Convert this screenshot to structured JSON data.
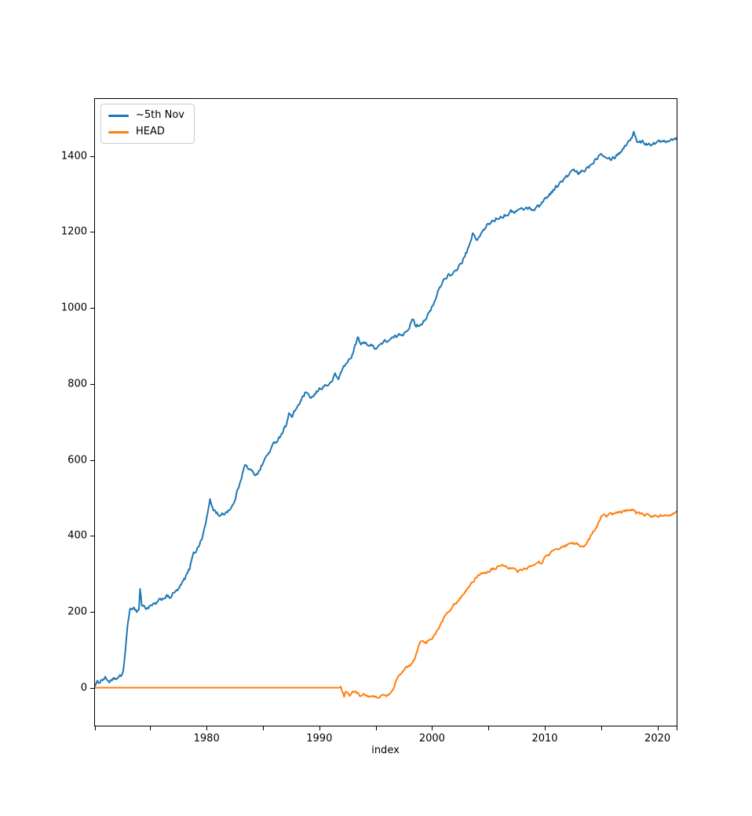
{
  "figure": {
    "background": "#ffffff",
    "spine_color": "#000000",
    "tick_color": "#000000",
    "text_color": "#000000"
  },
  "chart_data": {
    "type": "line",
    "title": "",
    "xlabel": "index",
    "ylabel": "",
    "grid": false,
    "legend_position": "upper-left",
    "xlim": [
      1970.1,
      2021.7
    ],
    "ylim": [
      -100,
      1550
    ],
    "x_ticks": [
      1970.1,
      1975,
      1980,
      1985,
      1990,
      1995,
      2000,
      2005,
      2010,
      2015,
      2020,
      2021.7
    ],
    "x_tick_labels": [
      {
        "value": 1980,
        "label": "1980"
      },
      {
        "value": 1990,
        "label": "1990"
      },
      {
        "value": 2000,
        "label": "2000"
      },
      {
        "value": 2010,
        "label": "2010"
      },
      {
        "value": 2020,
        "label": "2020"
      }
    ],
    "y_tick_labels": [
      {
        "value": 0,
        "label": "0"
      },
      {
        "value": 200,
        "label": "200"
      },
      {
        "value": 400,
        "label": "400"
      },
      {
        "value": 600,
        "label": "600"
      },
      {
        "value": 800,
        "label": "800"
      },
      {
        "value": 1000,
        "label": "1000"
      },
      {
        "value": 1200,
        "label": "1200"
      },
      {
        "value": 1400,
        "label": "1400"
      }
    ],
    "series": [
      {
        "name": "~5th Nov",
        "color": "#1f77b4",
        "noise": 4.5,
        "points": [
          [
            1970.1,
            8
          ],
          [
            1970.4,
            14
          ],
          [
            1970.7,
            22
          ],
          [
            1971.0,
            26
          ],
          [
            1971.3,
            18
          ],
          [
            1971.6,
            16
          ],
          [
            1972.0,
            24
          ],
          [
            1972.4,
            28
          ],
          [
            1972.6,
            45
          ],
          [
            1972.8,
            95
          ],
          [
            1973.0,
            170
          ],
          [
            1973.2,
            200
          ],
          [
            1973.5,
            214
          ],
          [
            1973.8,
            202
          ],
          [
            1974.0,
            206
          ],
          [
            1974.1,
            262
          ],
          [
            1974.25,
            218
          ],
          [
            1974.6,
            210
          ],
          [
            1975.0,
            213
          ],
          [
            1975.5,
            220
          ],
          [
            1976.0,
            232
          ],
          [
            1976.4,
            242
          ],
          [
            1976.7,
            236
          ],
          [
            1977.0,
            246
          ],
          [
            1977.5,
            258
          ],
          [
            1978.0,
            282
          ],
          [
            1978.5,
            312
          ],
          [
            1978.85,
            362
          ],
          [
            1979.0,
            355
          ],
          [
            1979.3,
            375
          ],
          [
            1979.6,
            392
          ],
          [
            1980.0,
            445
          ],
          [
            1980.3,
            492
          ],
          [
            1980.6,
            470
          ],
          [
            1981.0,
            458
          ],
          [
            1981.3,
            452
          ],
          [
            1981.7,
            462
          ],
          [
            1982.0,
            470
          ],
          [
            1982.4,
            482
          ],
          [
            1982.8,
            525
          ],
          [
            1983.1,
            558
          ],
          [
            1983.4,
            585
          ],
          [
            1983.7,
            578
          ],
          [
            1984.0,
            568
          ],
          [
            1984.3,
            562
          ],
          [
            1984.7,
            572
          ],
          [
            1985.0,
            592
          ],
          [
            1985.5,
            618
          ],
          [
            1986.0,
            642
          ],
          [
            1986.5,
            662
          ],
          [
            1987.0,
            688
          ],
          [
            1987.3,
            722
          ],
          [
            1987.6,
            712
          ],
          [
            1988.0,
            738
          ],
          [
            1988.4,
            756
          ],
          [
            1988.8,
            778
          ],
          [
            1989.1,
            762
          ],
          [
            1989.5,
            766
          ],
          [
            1990.0,
            786
          ],
          [
            1990.5,
            796
          ],
          [
            1991.0,
            800
          ],
          [
            1991.4,
            824
          ],
          [
            1991.7,
            812
          ],
          [
            1992.0,
            838
          ],
          [
            1992.5,
            856
          ],
          [
            1993.0,
            882
          ],
          [
            1993.4,
            922
          ],
          [
            1993.7,
            902
          ],
          [
            1994.1,
            910
          ],
          [
            1994.5,
            900
          ],
          [
            1995.0,
            896
          ],
          [
            1995.4,
            904
          ],
          [
            1995.9,
            912
          ],
          [
            1996.4,
            918
          ],
          [
            1996.9,
            924
          ],
          [
            1997.4,
            932
          ],
          [
            1997.9,
            948
          ],
          [
            1998.3,
            968
          ],
          [
            1998.6,
            952
          ],
          [
            1999.0,
            958
          ],
          [
            1999.4,
            972
          ],
          [
            1999.8,
            988
          ],
          [
            2000.2,
            1012
          ],
          [
            2000.6,
            1048
          ],
          [
            2001.0,
            1072
          ],
          [
            2001.4,
            1088
          ],
          [
            2001.8,
            1082
          ],
          [
            2002.2,
            1102
          ],
          [
            2002.6,
            1118
          ],
          [
            2003.0,
            1142
          ],
          [
            2003.4,
            1168
          ],
          [
            2003.6,
            1196
          ],
          [
            2003.9,
            1178
          ],
          [
            2004.3,
            1192
          ],
          [
            2004.7,
            1208
          ],
          [
            2005.0,
            1220
          ],
          [
            2005.5,
            1232
          ],
          [
            2006.0,
            1240
          ],
          [
            2006.5,
            1246
          ],
          [
            2007.0,
            1252
          ],
          [
            2007.5,
            1256
          ],
          [
            2008.0,
            1260
          ],
          [
            2008.5,
            1263
          ],
          [
            2009.0,
            1260
          ],
          [
            2009.5,
            1268
          ],
          [
            2010.0,
            1286
          ],
          [
            2010.5,
            1302
          ],
          [
            2011.0,
            1318
          ],
          [
            2011.5,
            1332
          ],
          [
            2012.0,
            1346
          ],
          [
            2012.5,
            1362
          ],
          [
            2013.0,
            1352
          ],
          [
            2013.5,
            1362
          ],
          [
            2014.0,
            1374
          ],
          [
            2014.5,
            1392
          ],
          [
            2015.0,
            1410
          ],
          [
            2015.4,
            1402
          ],
          [
            2015.8,
            1394
          ],
          [
            2016.2,
            1398
          ],
          [
            2016.6,
            1408
          ],
          [
            2017.0,
            1422
          ],
          [
            2017.5,
            1442
          ],
          [
            2017.9,
            1460
          ],
          [
            2018.2,
            1440
          ],
          [
            2018.6,
            1436
          ],
          [
            2019.0,
            1434
          ],
          [
            2019.5,
            1433
          ],
          [
            2020.0,
            1435
          ],
          [
            2020.5,
            1440
          ],
          [
            2021.0,
            1444
          ],
          [
            2021.4,
            1446
          ],
          [
            2021.7,
            1448
          ]
        ]
      },
      {
        "name": "HEAD",
        "color": "#ff7f0e",
        "noise": 3.2,
        "points": [
          [
            1970.1,
            0
          ],
          [
            1991.9,
            0
          ],
          [
            1992.0,
            -12
          ],
          [
            1992.2,
            -22
          ],
          [
            1992.4,
            -10
          ],
          [
            1992.7,
            -20
          ],
          [
            1993.0,
            -8
          ],
          [
            1993.3,
            -14
          ],
          [
            1993.6,
            -20
          ],
          [
            1994.0,
            -16
          ],
          [
            1994.3,
            -26
          ],
          [
            1994.7,
            -20
          ],
          [
            1995.1,
            -26
          ],
          [
            1995.5,
            -22
          ],
          [
            1995.9,
            -24
          ],
          [
            1996.2,
            -14
          ],
          [
            1996.5,
            -8
          ],
          [
            1996.8,
            18
          ],
          [
            1997.1,
            32
          ],
          [
            1997.5,
            48
          ],
          [
            1997.9,
            54
          ],
          [
            1998.2,
            62
          ],
          [
            1998.5,
            78
          ],
          [
            1998.8,
            108
          ],
          [
            1999.1,
            124
          ],
          [
            1999.5,
            120
          ],
          [
            1999.9,
            128
          ],
          [
            2000.3,
            142
          ],
          [
            2000.7,
            162
          ],
          [
            2001.1,
            186
          ],
          [
            2001.5,
            200
          ],
          [
            2001.9,
            214
          ],
          [
            2002.3,
            230
          ],
          [
            2002.7,
            242
          ],
          [
            2003.1,
            260
          ],
          [
            2003.5,
            275
          ],
          [
            2003.9,
            290
          ],
          [
            2004.3,
            300
          ],
          [
            2004.8,
            304
          ],
          [
            2005.2,
            310
          ],
          [
            2005.6,
            315
          ],
          [
            2006.0,
            318
          ],
          [
            2006.4,
            320
          ],
          [
            2006.8,
            314
          ],
          [
            2007.2,
            320
          ],
          [
            2007.6,
            305
          ],
          [
            2008.0,
            312
          ],
          [
            2008.5,
            318
          ],
          [
            2009.0,
            322
          ],
          [
            2009.4,
            326
          ],
          [
            2009.8,
            332
          ],
          [
            2010.2,
            350
          ],
          [
            2010.6,
            358
          ],
          [
            2011.0,
            362
          ],
          [
            2011.5,
            370
          ],
          [
            2012.0,
            376
          ],
          [
            2012.4,
            382
          ],
          [
            2012.8,
            378
          ],
          [
            2013.1,
            372
          ],
          [
            2013.5,
            367
          ],
          [
            2013.8,
            386
          ],
          [
            2014.2,
            404
          ],
          [
            2014.6,
            422
          ],
          [
            2015.0,
            448
          ],
          [
            2015.4,
            452
          ],
          [
            2015.9,
            456
          ],
          [
            2016.4,
            460
          ],
          [
            2016.9,
            464
          ],
          [
            2017.4,
            467
          ],
          [
            2017.8,
            470
          ],
          [
            2018.1,
            459
          ],
          [
            2018.6,
            456
          ],
          [
            2019.1,
            455
          ],
          [
            2019.6,
            452
          ],
          [
            2020.1,
            451
          ],
          [
            2020.5,
            454
          ],
          [
            2021.0,
            457
          ],
          [
            2021.4,
            461
          ],
          [
            2021.7,
            464
          ]
        ]
      }
    ]
  }
}
